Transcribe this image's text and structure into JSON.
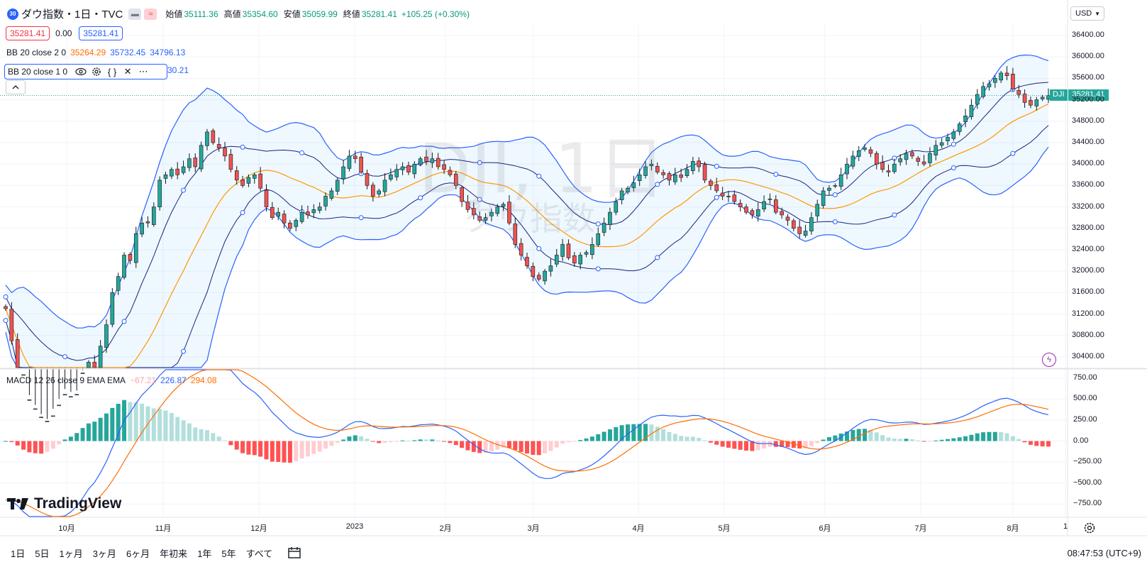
{
  "symbol": {
    "badge": "30",
    "title": "ダウ指数・1日・TVC",
    "ohlc": {
      "open_label": "始値",
      "open": "35111.36",
      "high_label": "高値",
      "high": "35354.60",
      "low_label": "安値",
      "low": "35059.99",
      "close_label": "終値",
      "close": "35281.41",
      "change": "+105.25 (+0.30%)"
    },
    "sell_price": "35281.41",
    "spread": "0.00",
    "buy_price": "35281.41"
  },
  "indicators": {
    "bb1": {
      "label": "BB 20 close 2 0",
      "basis": "35264.29",
      "upper": "35732.45",
      "lower": "34796.13"
    },
    "bb2": {
      "label": "BB 20 close 1 0",
      "value_tail": "30.21"
    },
    "macd": {
      "label": "MACD 12 26 close 9 EMA EMA",
      "hist": "−67.21",
      "macd": "226.87",
      "signal": "294.08"
    }
  },
  "currency_button": "USD",
  "watermark": {
    "symbol": "DJI, 1日",
    "name": "ダウ指数"
  },
  "last_price_tag": {
    "ticker": "DJI",
    "price": "35281.41"
  },
  "price_axis": {
    "labels": [
      "36400.00",
      "36000.00",
      "35600.00",
      "35200.00",
      "34800.00",
      "34400.00",
      "34000.00",
      "33600.00",
      "33200.00",
      "32800.00",
      "32400.00",
      "32000.00",
      "31600.00",
      "31200.00",
      "30800.00",
      "30400.00"
    ]
  },
  "macd_axis": {
    "labels": [
      "750.00",
      "500.00",
      "250.00",
      "0.00",
      "−250.00",
      "−500.00",
      "−750.00"
    ]
  },
  "time_axis": {
    "labels": [
      "10月",
      "11月",
      "12月",
      "2023",
      "2月",
      "3月",
      "4月",
      "5月",
      "6月",
      "7月",
      "8月",
      "1"
    ]
  },
  "logo_text": "TradingView",
  "ranges": [
    "1日",
    "5日",
    "1ヶ月",
    "3ヶ月",
    "6ヶ月",
    "年初来",
    "1年",
    "5年",
    "すべて"
  ],
  "clock": "08:47:53 (UTC+9)",
  "colors": {
    "up": "#26a69a",
    "down": "#ef5350",
    "basis": "#ff9800",
    "band": "#2962ff",
    "macd": "#2962ff",
    "signal": "#ff6d00"
  },
  "chart_data": {
    "type": "candlestick",
    "x_range": [
      "2022-09-15",
      "2023-08-11"
    ],
    "y_range": [
      30200,
      36600
    ],
    "close_series": [
      31300,
      30700,
      30100,
      29600,
      29400,
      29300,
      29100,
      29200,
      29300,
      29500,
      29700,
      29500,
      29700,
      30100,
      30300,
      30100,
      30600,
      31000,
      31600,
      31900,
      32300,
      32200,
      32700,
      32900,
      32900,
      33200,
      33700,
      33800,
      33900,
      33800,
      33950,
      34100,
      33950,
      34350,
      34600,
      34400,
      34300,
      34150,
      33900,
      33700,
      33600,
      33750,
      33800,
      33550,
      33200,
      33000,
      33100,
      32900,
      32800,
      32950,
      33100,
      33050,
      33150,
      33200,
      33400,
      33500,
      33700,
      33950,
      34150,
      34100,
      33850,
      33600,
      33400,
      33500,
      33700,
      33800,
      33900,
      33950,
      33850,
      34000,
      34100,
      34050,
      34100,
      33950,
      33900,
      33800,
      33600,
      33300,
      33150,
      33050,
      32950,
      33000,
      33100,
      33200,
      33250,
      32900,
      32500,
      32300,
      32100,
      31900,
      31850,
      32000,
      32100,
      32300,
      32500,
      32250,
      32150,
      32300,
      32350,
      32500,
      32700,
      32900,
      33100,
      33300,
      33500,
      33550,
      33650,
      33800,
      33950,
      34000,
      33850,
      33800,
      33700,
      33800,
      33750,
      33900,
      34050,
      33950,
      33700,
      33600,
      33500,
      33400,
      33400,
      33300,
      33200,
      33100,
      33050,
      33150,
      33300,
      33350,
      33100,
      33050,
      32950,
      32800,
      32700,
      32750,
      33000,
      33250,
      33500,
      33550,
      33600,
      33800,
      34000,
      34150,
      34250,
      34300,
      34200,
      34000,
      33900,
      33850,
      34000,
      34100,
      34200,
      34150,
      34050,
      34000,
      34200,
      34350,
      34400,
      34500,
      34600,
      34750,
      34900,
      35100,
      35300,
      35450,
      35500,
      35600,
      35700,
      35650,
      35400,
      35300,
      35150,
      35100,
      35200,
      35250,
      35281.41
    ],
    "macd": {
      "start": -700,
      "peak_oct": 700,
      "jan": 0,
      "mar": -330,
      "apr": 270,
      "may_jun": -120,
      "aug": 400,
      "last": 226.87
    },
    "signal_last": 294.08,
    "hist_last": -67.21
  }
}
